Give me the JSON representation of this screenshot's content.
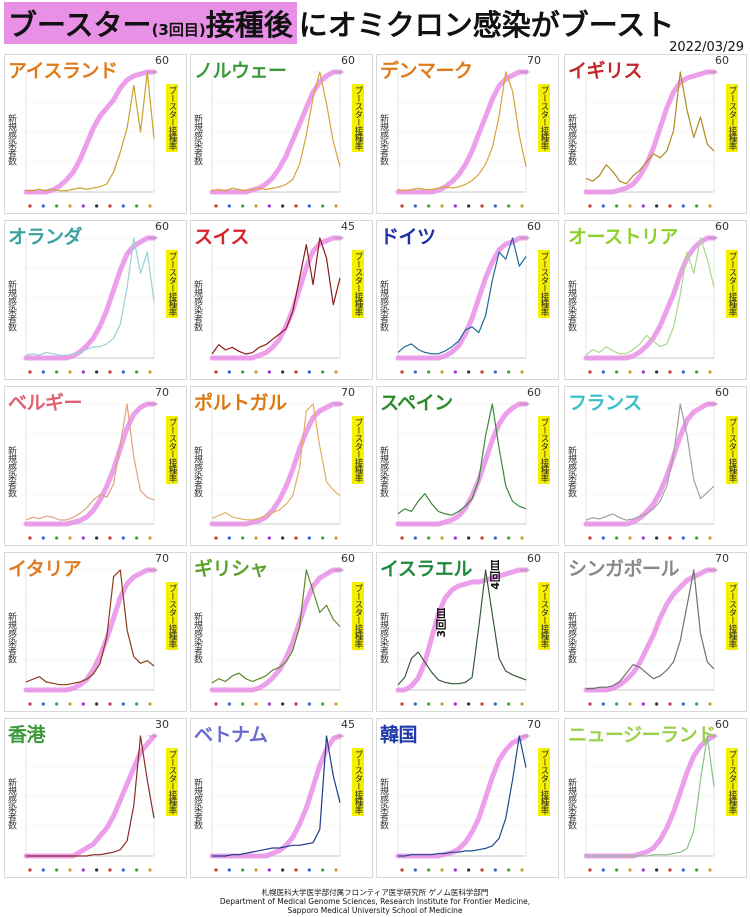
{
  "header": {
    "title_part1": "ブースター",
    "title_part2": "(3回目)",
    "title_part3": "接種後",
    "title_part4": "にオミクロン感染がブースト",
    "date": "2022/03/29"
  },
  "labels": {
    "ylabel_left": "新規感染者数",
    "ylabel_right": "ブースター接種率",
    "dose3": "3回目",
    "dose4": "4回目"
  },
  "colors": {
    "booster_line": "#e98ee8",
    "highlight": "#e88fe6",
    "right_label_bg": "#f4f000"
  },
  "footer": {
    "line1": "札幌医科大学医学部付属フロンティア医学研究所 ゲノム医科学部門",
    "line2": "Department of Medical Genome Sciences, Research Institute for Frontier Medicine,",
    "line3": "Sapporo Medical University School of Medicine"
  },
  "chart_data": [
    {
      "type": "line",
      "title": "アイスランド",
      "title_color": "#e07b1a",
      "line_color": "#c9a227",
      "booster_max": 60,
      "x": [
        0,
        1,
        2,
        3,
        4,
        5,
        6,
        7,
        8,
        9,
        10,
        11,
        12,
        13,
        14,
        15,
        16,
        17,
        18,
        19
      ],
      "booster": [
        0,
        0,
        0,
        0,
        1,
        3,
        6,
        10,
        16,
        24,
        32,
        38,
        42,
        46,
        52,
        56,
        58,
        59,
        60,
        60
      ],
      "cases": [
        1,
        1,
        2,
        1,
        2,
        1,
        1,
        2,
        3,
        2,
        3,
        4,
        6,
        15,
        30,
        48,
        80,
        45,
        90,
        40
      ]
    },
    {
      "type": "line",
      "title": "ノルウェー",
      "title_color": "#3a9a3a",
      "line_color": "#d9a23a",
      "booster_max": 60,
      "x": [
        0,
        1,
        2,
        3,
        4,
        5,
        6,
        7,
        8,
        9,
        10,
        11,
        12,
        13,
        14,
        15,
        16,
        17,
        18,
        19
      ],
      "booster": [
        0,
        0,
        0,
        0,
        0,
        0,
        1,
        2,
        4,
        7,
        12,
        18,
        26,
        34,
        42,
        50,
        55,
        58,
        60,
        60
      ],
      "cases": [
        1,
        2,
        1,
        3,
        2,
        1,
        2,
        3,
        2,
        3,
        4,
        6,
        10,
        22,
        45,
        75,
        95,
        70,
        40,
        20
      ]
    },
    {
      "type": "line",
      "title": "デンマーク",
      "title_color": "#e07b1a",
      "line_color": "#d9a23a",
      "booster_max": 70,
      "x": [
        0,
        1,
        2,
        3,
        4,
        5,
        6,
        7,
        8,
        9,
        10,
        11,
        12,
        13,
        14,
        15,
        16,
        17,
        18,
        19
      ],
      "booster": [
        0,
        0,
        0,
        0,
        0,
        0,
        1,
        3,
        6,
        10,
        16,
        24,
        34,
        44,
        54,
        62,
        66,
        68,
        70,
        70
      ],
      "cases": [
        2,
        1,
        2,
        3,
        2,
        2,
        3,
        4,
        3,
        4,
        6,
        9,
        14,
        22,
        35,
        60,
        95,
        80,
        45,
        20
      ]
    },
    {
      "type": "line",
      "title": "イギリス",
      "title_color": "#c0282b",
      "line_color": "#b08a1f",
      "booster_max": 60,
      "x": [
        0,
        1,
        2,
        3,
        4,
        5,
        6,
        7,
        8,
        9,
        10,
        11,
        12,
        13,
        14,
        15,
        16,
        17,
        18,
        19
      ],
      "booster": [
        0,
        0,
        0,
        0,
        0,
        1,
        2,
        4,
        8,
        14,
        22,
        32,
        42,
        50,
        55,
        57,
        58,
        59,
        60,
        60
      ],
      "cases": [
        10,
        8,
        12,
        20,
        15,
        8,
        6,
        12,
        16,
        22,
        28,
        25,
        30,
        45,
        88,
        60,
        40,
        55,
        35,
        30
      ]
    },
    {
      "type": "line",
      "title": "オランダ",
      "title_color": "#3aa0a0",
      "line_color": "#9ad0d0",
      "booster_max": 60,
      "x": [
        0,
        1,
        2,
        3,
        4,
        5,
        6,
        7,
        8,
        9,
        10,
        11,
        12,
        13,
        14,
        15,
        16,
        17,
        18,
        19
      ],
      "booster": [
        0,
        0,
        0,
        0,
        0,
        0,
        0,
        1,
        3,
        6,
        10,
        16,
        24,
        34,
        44,
        52,
        56,
        58,
        60,
        60
      ],
      "cases": [
        2,
        3,
        2,
        4,
        3,
        2,
        2,
        3,
        4,
        6,
        8,
        8,
        10,
        14,
        24,
        50,
        85,
        60,
        75,
        40
      ]
    },
    {
      "type": "line",
      "title": "スイス",
      "title_color": "#d8232a",
      "line_color": "#8b1a1a",
      "booster_max": 45,
      "x": [
        0,
        1,
        2,
        3,
        4,
        5,
        6,
        7,
        8,
        9,
        10,
        11,
        12,
        13,
        14,
        15,
        16,
        17,
        18,
        19
      ],
      "booster": [
        0,
        0,
        0,
        0,
        0,
        0,
        0,
        1,
        2,
        4,
        7,
        12,
        18,
        26,
        34,
        40,
        43,
        44,
        45,
        45
      ],
      "cases": [
        3,
        10,
        6,
        8,
        5,
        3,
        4,
        8,
        10,
        14,
        18,
        22,
        35,
        60,
        85,
        55,
        90,
        75,
        40,
        60
      ]
    },
    {
      "type": "line",
      "title": "ドイツ",
      "title_color": "#1f2fa8",
      "line_color": "#1f6a9a",
      "booster_max": 60,
      "x": [
        0,
        1,
        2,
        3,
        4,
        5,
        6,
        7,
        8,
        9,
        10,
        11,
        12,
        13,
        14,
        15,
        16,
        17,
        18,
        19
      ],
      "booster": [
        0,
        0,
        0,
        0,
        0,
        0,
        0,
        1,
        3,
        6,
        12,
        20,
        30,
        40,
        48,
        54,
        57,
        58,
        60,
        60
      ],
      "cases": [
        4,
        8,
        10,
        6,
        4,
        3,
        3,
        5,
        8,
        12,
        20,
        22,
        18,
        30,
        55,
        75,
        70,
        85,
        65,
        72
      ]
    },
    {
      "type": "line",
      "title": "オーストリア",
      "title_color": "#8fd12a",
      "line_color": "#a8d98a",
      "booster_max": 60,
      "x": [
        0,
        1,
        2,
        3,
        4,
        5,
        6,
        7,
        8,
        9,
        10,
        11,
        12,
        13,
        14,
        15,
        16,
        17,
        18,
        19
      ],
      "booster": [
        0,
        0,
        0,
        0,
        0,
        0,
        0,
        1,
        3,
        6,
        10,
        16,
        24,
        32,
        42,
        50,
        55,
        58,
        60,
        60
      ],
      "cases": [
        2,
        6,
        4,
        8,
        5,
        3,
        3,
        6,
        10,
        16,
        12,
        8,
        10,
        22,
        45,
        75,
        60,
        85,
        70,
        50
      ]
    },
    {
      "type": "line",
      "title": "ベルギー",
      "title_color": "#e06070",
      "line_color": "#e0a080",
      "booster_max": 70,
      "x": [
        0,
        1,
        2,
        3,
        4,
        5,
        6,
        7,
        8,
        9,
        10,
        11,
        12,
        13,
        14,
        15,
        16,
        17,
        18,
        19
      ],
      "booster": [
        0,
        0,
        0,
        0,
        0,
        0,
        0,
        1,
        2,
        4,
        8,
        14,
        22,
        32,
        44,
        56,
        64,
        68,
        70,
        70
      ],
      "cases": [
        3,
        5,
        4,
        6,
        5,
        3,
        3,
        5,
        8,
        12,
        18,
        22,
        20,
        30,
        60,
        90,
        50,
        25,
        20,
        18
      ]
    },
    {
      "type": "line",
      "title": "ポルトガル",
      "title_color": "#d87a10",
      "line_color": "#e0b060",
      "booster_max": 70,
      "x": [
        0,
        1,
        2,
        3,
        4,
        5,
        6,
        7,
        8,
        9,
        10,
        11,
        12,
        13,
        14,
        15,
        16,
        17,
        18,
        19
      ],
      "booster": [
        0,
        0,
        0,
        0,
        0,
        0,
        1,
        2,
        4,
        8,
        14,
        22,
        32,
        44,
        54,
        62,
        66,
        68,
        70,
        70
      ],
      "cases": [
        4,
        6,
        8,
        5,
        4,
        3,
        3,
        4,
        6,
        8,
        10,
        14,
        20,
        40,
        80,
        85,
        55,
        30,
        24,
        20
      ]
    },
    {
      "type": "line",
      "title": "スペイン",
      "title_color": "#2a8a2a",
      "line_color": "#3a8a3a",
      "booster_max": 60,
      "x": [
        0,
        1,
        2,
        3,
        4,
        5,
        6,
        7,
        8,
        9,
        10,
        11,
        12,
        13,
        14,
        15,
        16,
        17,
        18,
        19
      ],
      "booster": [
        0,
        0,
        0,
        0,
        0,
        0,
        0,
        1,
        2,
        4,
        8,
        14,
        22,
        32,
        42,
        50,
        55,
        58,
        60,
        60
      ],
      "cases": [
        8,
        12,
        10,
        18,
        24,
        16,
        10,
        8,
        7,
        10,
        14,
        20,
        35,
        70,
        95,
        60,
        30,
        18,
        14,
        12
      ]
    },
    {
      "type": "line",
      "title": "フランス",
      "title_color": "#3ac0c8",
      "line_color": "#a0a0a0",
      "booster_max": 60,
      "x": [
        0,
        1,
        2,
        3,
        4,
        5,
        6,
        7,
        8,
        9,
        10,
        11,
        12,
        13,
        14,
        15,
        16,
        17,
        18,
        19
      ],
      "booster": [
        0,
        0,
        0,
        0,
        0,
        0,
        0,
        1,
        3,
        6,
        10,
        16,
        24,
        34,
        44,
        52,
        56,
        58,
        60,
        60
      ],
      "cases": [
        3,
        5,
        4,
        6,
        8,
        5,
        3,
        4,
        6,
        8,
        12,
        18,
        30,
        55,
        95,
        70,
        35,
        20,
        25,
        30
      ]
    },
    {
      "type": "line",
      "title": "イタリア",
      "title_color": "#e07a20",
      "line_color": "#8b3a1a",
      "booster_max": 70,
      "x": [
        0,
        1,
        2,
        3,
        4,
        5,
        6,
        7,
        8,
        9,
        10,
        11,
        12,
        13,
        14,
        15,
        16,
        17,
        18,
        19
      ],
      "booster": [
        0,
        0,
        0,
        0,
        0,
        0,
        0,
        1,
        3,
        6,
        12,
        20,
        30,
        42,
        54,
        62,
        66,
        68,
        70,
        70
      ],
      "cases": [
        6,
        8,
        10,
        6,
        5,
        4,
        4,
        5,
        6,
        8,
        12,
        20,
        40,
        85,
        90,
        45,
        25,
        20,
        22,
        18
      ]
    },
    {
      "type": "line",
      "title": "ギリシャ",
      "title_color": "#5aa02a",
      "line_color": "#5a8a2a",
      "booster_max": 60,
      "x": [
        0,
        1,
        2,
        3,
        4,
        5,
        6,
        7,
        8,
        9,
        10,
        11,
        12,
        13,
        14,
        15,
        16,
        17,
        18,
        19
      ],
      "booster": [
        0,
        0,
        0,
        0,
        0,
        0,
        0,
        1,
        3,
        6,
        10,
        16,
        24,
        34,
        44,
        52,
        56,
        58,
        60,
        60
      ],
      "cases": [
        5,
        8,
        6,
        10,
        12,
        8,
        6,
        8,
        10,
        14,
        16,
        20,
        28,
        45,
        85,
        70,
        55,
        60,
        50,
        45
      ]
    },
    {
      "type": "line",
      "title": "イスラエル",
      "title_color": "#1e8a3a",
      "line_color": "#3a5a3a",
      "booster_max": 60,
      "x": [
        0,
        1,
        2,
        3,
        4,
        5,
        6,
        7,
        8,
        9,
        10,
        11,
        12,
        13,
        14,
        15,
        16,
        17,
        18,
        19
      ],
      "booster": [
        0,
        0,
        2,
        6,
        14,
        26,
        38,
        46,
        50,
        52,
        53,
        54,
        54,
        55,
        56,
        57,
        58,
        59,
        60,
        60
      ],
      "cases": [
        4,
        10,
        25,
        30,
        22,
        14,
        8,
        6,
        5,
        5,
        6,
        10,
        50,
        95,
        60,
        25,
        15,
        12,
        10,
        8
      ]
    },
    {
      "type": "line",
      "title": "シンガポール",
      "title_color": "#888888",
      "line_color": "#707070",
      "booster_max": 70,
      "x": [
        0,
        1,
        2,
        3,
        4,
        5,
        6,
        7,
        8,
        9,
        10,
        11,
        12,
        13,
        14,
        15,
        16,
        17,
        18,
        19
      ],
      "booster": [
        0,
        0,
        0,
        0,
        1,
        3,
        6,
        10,
        16,
        24,
        32,
        42,
        50,
        56,
        60,
        64,
        66,
        68,
        70,
        70
      ],
      "cases": [
        1,
        1,
        2,
        2,
        3,
        6,
        12,
        18,
        16,
        12,
        8,
        10,
        14,
        20,
        35,
        60,
        85,
        40,
        20,
        15
      ]
    },
    {
      "type": "line",
      "title": "香港",
      "title_color": "#3a9a3a",
      "line_color": "#8b2a2a",
      "booster_max": 30,
      "x": [
        0,
        1,
        2,
        3,
        4,
        5,
        6,
        7,
        8,
        9,
        10,
        11,
        12,
        13,
        14,
        15,
        16,
        17,
        18,
        19
      ],
      "booster": [
        0,
        0,
        0,
        0,
        0,
        0,
        0,
        0,
        1,
        2,
        3,
        5,
        7,
        10,
        14,
        18,
        22,
        26,
        28,
        30
      ],
      "cases": [
        0,
        0,
        0,
        0,
        0,
        0,
        0,
        0,
        0,
        0,
        1,
        1,
        2,
        3,
        5,
        12,
        40,
        95,
        60,
        30
      ]
    },
    {
      "type": "line",
      "title": "ベトナム",
      "title_color": "#6a6ad0",
      "line_color": "#1f3a8a",
      "booster_max": 45,
      "x": [
        0,
        1,
        2,
        3,
        4,
        5,
        6,
        7,
        8,
        9,
        10,
        11,
        12,
        13,
        14,
        15,
        16,
        17,
        18,
        19
      ],
      "booster": [
        0,
        0,
        0,
        0,
        0,
        0,
        0,
        0,
        0,
        1,
        2,
        4,
        7,
        12,
        18,
        26,
        34,
        40,
        44,
        45
      ],
      "cases": [
        0,
        0,
        0,
        1,
        1,
        2,
        3,
        4,
        5,
        6,
        6,
        7,
        8,
        8,
        9,
        10,
        20,
        90,
        60,
        40
      ]
    },
    {
      "type": "line",
      "title": "韓国",
      "title_color": "#1f3aa8",
      "line_color": "#1f4a8a",
      "booster_max": 70,
      "x": [
        0,
        1,
        2,
        3,
        4,
        5,
        6,
        7,
        8,
        9,
        10,
        11,
        12,
        13,
        14,
        15,
        16,
        17,
        18,
        19
      ],
      "booster": [
        0,
        0,
        0,
        0,
        0,
        0,
        0,
        1,
        2,
        4,
        8,
        14,
        22,
        34,
        46,
        56,
        62,
        66,
        68,
        70
      ],
      "cases": [
        0,
        0,
        1,
        1,
        1,
        1,
        2,
        2,
        3,
        3,
        4,
        4,
        5,
        6,
        8,
        14,
        30,
        60,
        95,
        70
      ]
    },
    {
      "type": "line",
      "title": "ニュージーランド",
      "title_color": "#9ad04a",
      "line_color": "#8ac08a",
      "booster_max": 60,
      "x": [
        0,
        1,
        2,
        3,
        4,
        5,
        6,
        7,
        8,
        9,
        10,
        11,
        12,
        13,
        14,
        15,
        16,
        17,
        18,
        19
      ],
      "booster": [
        0,
        0,
        0,
        0,
        0,
        0,
        0,
        0,
        1,
        2,
        4,
        8,
        14,
        22,
        32,
        42,
        50,
        55,
        58,
        60
      ],
      "cases": [
        0,
        0,
        0,
        0,
        0,
        0,
        0,
        0,
        0,
        0,
        1,
        1,
        1,
        2,
        3,
        6,
        20,
        60,
        95,
        55
      ]
    }
  ]
}
